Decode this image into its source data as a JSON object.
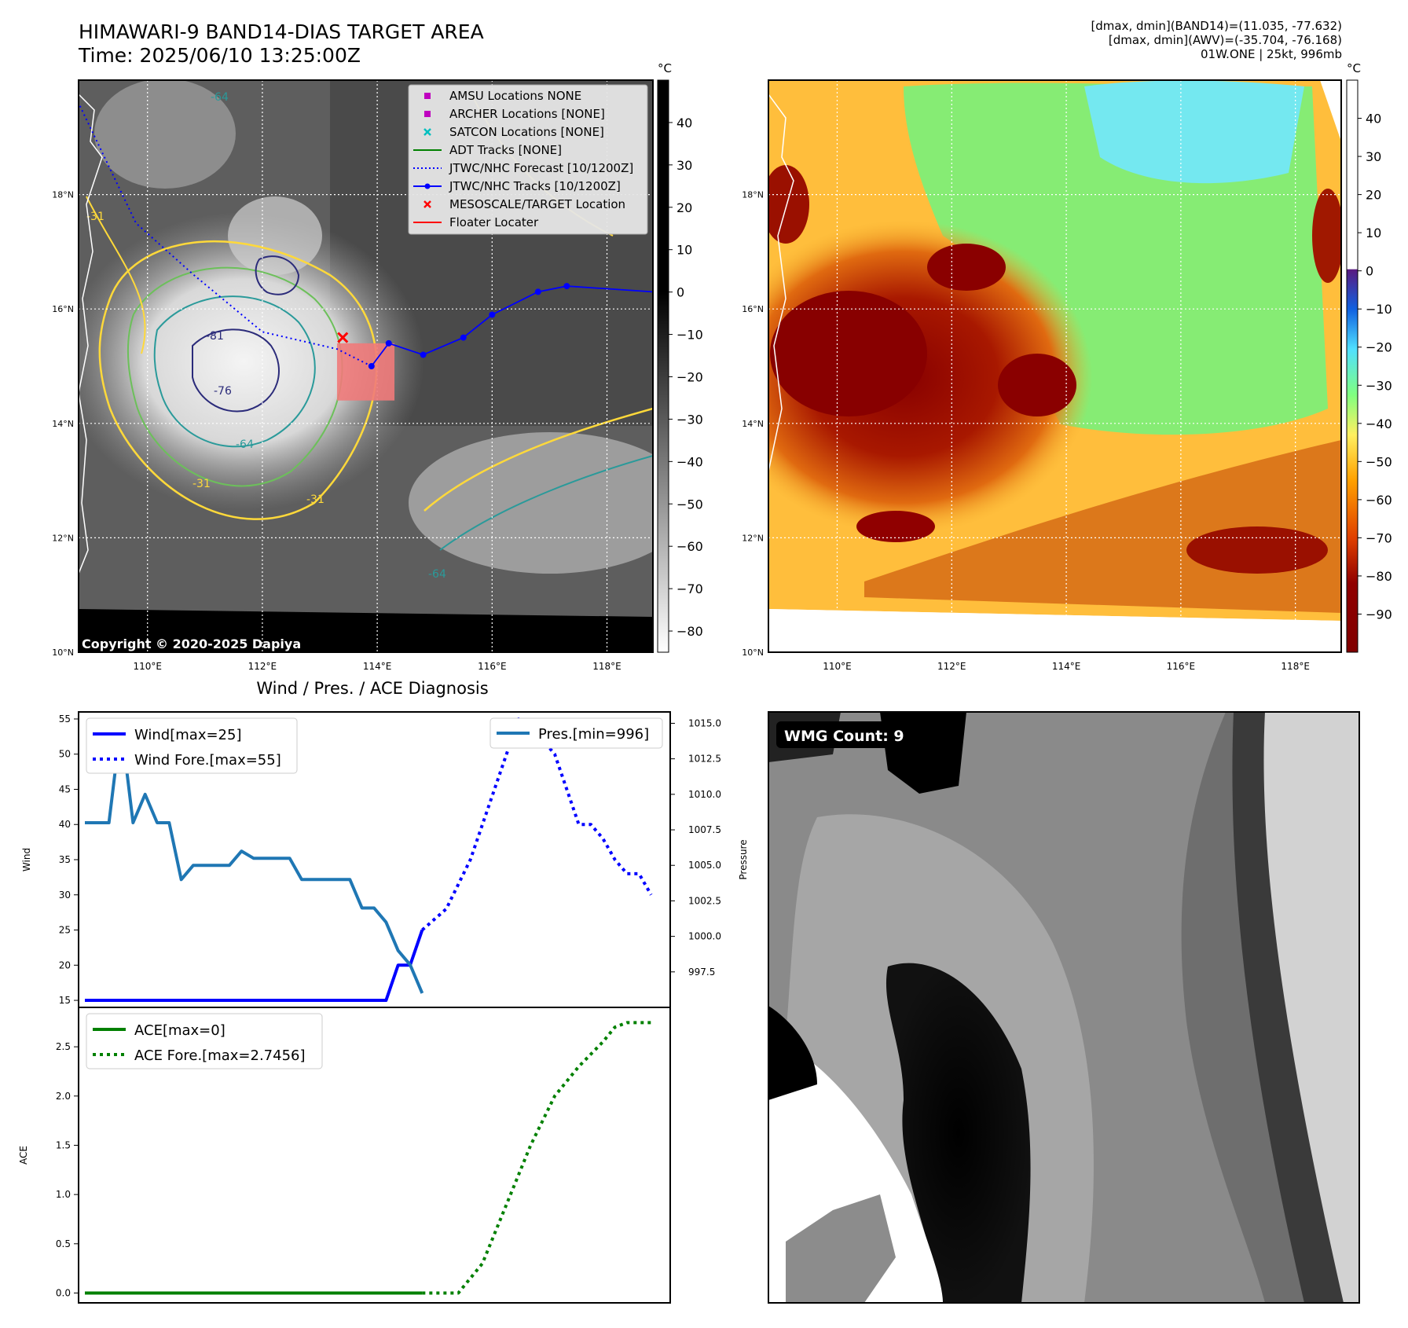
{
  "header": {
    "title": "HIMAWARI-9 BAND14-DIAS TARGET AREA",
    "time": "Time: 2025/06/10 13:25:00Z",
    "stats": [
      "[dmax, dmin](BAND14)=(11.035, -77.632)",
      "[dmax, dmin](AWV)=(-35.704, -76.168)",
      "01W.ONE | 25kt, 996mb"
    ]
  },
  "map_axes": {
    "lon_labels": [
      "110°E",
      "112°E",
      "114°E",
      "116°E",
      "118°E"
    ],
    "lat_labels": [
      "18°N",
      "16°N",
      "14°N",
      "12°N",
      "10°N"
    ],
    "lon_values": [
      110,
      112,
      114,
      116,
      118
    ],
    "lat_values": [
      18,
      16,
      14,
      12,
      10
    ],
    "lon_range": [
      108.8,
      118.8
    ],
    "lat_range": [
      10,
      20
    ]
  },
  "ir_panel": {
    "copyright": "Copyright © 2020-2025 Dapiya",
    "contour_labels": [
      "-64",
      "-81",
      "-76",
      "-31",
      "-64",
      "-31",
      "-64",
      "-31"
    ],
    "legend": [
      {
        "label": "AMSU Locations NONE",
        "marker": "square",
        "color": "#bf00bf"
      },
      {
        "label": "ARCHER Locations [NONE]",
        "marker": "square",
        "color": "#bf00bf"
      },
      {
        "label": "SATCON Locations [NONE]",
        "marker": "x",
        "color": "#00bfbf"
      },
      {
        "label": "ADT Tracks [NONE]",
        "marker": "line",
        "color": "#008000"
      },
      {
        "label": "JTWC/NHC Forecast [10/1200Z]",
        "marker": "dotted",
        "color": "#0000ff"
      },
      {
        "label": "JTWC/NHC Tracks [10/1200Z]",
        "marker": "line-dot",
        "color": "#0000ff"
      },
      {
        "label": "MESOSCALE/TARGET Location",
        "marker": "x",
        "color": "#ff0000"
      },
      {
        "label": "Floater Locater",
        "marker": "line",
        "color": "#ff0000"
      }
    ],
    "track": [
      [
        118.8,
        16.3
      ],
      [
        117.3,
        16.4
      ],
      [
        116.8,
        16.3
      ],
      [
        116.0,
        15.9
      ],
      [
        115.5,
        15.5
      ],
      [
        114.8,
        15.2
      ],
      [
        114.2,
        15.4
      ],
      [
        113.9,
        15.0
      ]
    ],
    "forecast": [
      [
        113.9,
        15.0
      ],
      [
        113.3,
        15.3
      ],
      [
        112.0,
        15.6
      ],
      [
        110.8,
        16.6
      ],
      [
        109.8,
        17.5
      ],
      [
        108.8,
        19.6
      ]
    ],
    "target": [
      113.4,
      15.5
    ],
    "floater_box": [
      113.3,
      14.4,
      114.3,
      15.4
    ],
    "colorbar": {
      "unit": "°C",
      "ticks": [
        "40",
        "30",
        "20",
        "10",
        "0",
        "−10",
        "−20",
        "−30",
        "−40",
        "−50",
        "−60",
        "−70",
        "−80"
      ],
      "range": [
        -85,
        50
      ]
    }
  },
  "awv_panel": {
    "colorbar": {
      "unit": "°C",
      "ticks": [
        "40",
        "30",
        "20",
        "10",
        "0",
        "−10",
        "−20",
        "−30",
        "−40",
        "−50",
        "−60",
        "−70",
        "−80",
        "−90"
      ],
      "range": [
        -100,
        50
      ]
    }
  },
  "wind_panel": {
    "title": "Wind / Pres. / ACE Diagnosis",
    "ylabel_left": "Wind",
    "ylabel_right": "Pressure",
    "ylabel_ace": "ACE",
    "legend_wind": [
      "Wind[max=25]",
      "Wind Fore.[max=55]"
    ],
    "legend_pres": [
      "Pres.[min=996]"
    ],
    "legend_ace": [
      "ACE[max=0]",
      "ACE Fore.[max=2.7456]"
    ],
    "wind_ticks": [
      "55",
      "50",
      "45",
      "40",
      "35",
      "30",
      "25",
      "20",
      "15"
    ],
    "pres_ticks": [
      "1015.0",
      "1012.5",
      "1010.0",
      "1007.5",
      "1005.0",
      "1002.5",
      "1000.0",
      "997.5"
    ],
    "ace_ticks": [
      "2.5",
      "2.0",
      "1.5",
      "1.0",
      "0.5",
      "0.0"
    ]
  },
  "chart_data": [
    {
      "type": "line",
      "title": "Wind / Pres. / ACE Diagnosis",
      "ylabel": "Wind",
      "ylim": [
        14,
        56
      ],
      "xlim": [
        0,
        48
      ],
      "series": [
        {
          "name": "Wind[max=25]",
          "color": "#0000ff",
          "style": "solid",
          "x": [
            0,
            25,
            26,
            27,
            28
          ],
          "y": [
            15,
            15,
            20,
            20,
            25
          ]
        },
        {
          "name": "Wind Fore.[max=55]",
          "color": "#0000ff",
          "style": "dotted",
          "x": [
            28,
            30,
            32,
            34,
            35,
            36,
            37,
            38,
            39,
            40,
            41,
            42,
            43,
            44,
            45,
            46,
            47
          ],
          "y": [
            25,
            28,
            35,
            45,
            50,
            55,
            52,
            52,
            50,
            45,
            40,
            40,
            38,
            35,
            33,
            33,
            30
          ]
        }
      ]
    },
    {
      "type": "line",
      "ylabel": "Pressure",
      "ylim": [
        995.0,
        1015.8
      ],
      "xlim": [
        0,
        48
      ],
      "series": [
        {
          "name": "Pres.[min=996]",
          "color": "#1f77b4",
          "style": "solid",
          "x": [
            0,
            1,
            2,
            3,
            4,
            5,
            6,
            7,
            8,
            9,
            10,
            11,
            12,
            13,
            14,
            15,
            16,
            17,
            18,
            19,
            20,
            21,
            22,
            23,
            24,
            25,
            26,
            27,
            28
          ],
          "y": [
            1008,
            1008,
            1008,
            1015,
            1008,
            1010,
            1008,
            1008,
            1004,
            1005,
            1005,
            1005,
            1005,
            1006,
            1005.5,
            1005.5,
            1005.5,
            1005.5,
            1004,
            1004,
            1004,
            1004,
            1004,
            1002,
            1002,
            1001,
            999,
            998,
            996
          ]
        }
      ]
    },
    {
      "type": "line",
      "ylabel": "ACE",
      "ylim": [
        -0.1,
        2.9
      ],
      "xlim": [
        0,
        48
      ],
      "series": [
        {
          "name": "ACE[max=0]",
          "color": "#008000",
          "style": "solid",
          "x": [
            0,
            28
          ],
          "y": [
            0,
            0
          ]
        },
        {
          "name": "ACE Fore.[max=2.7456]",
          "color": "#008000",
          "style": "dotted",
          "x": [
            28,
            31,
            33,
            35,
            37,
            39,
            41,
            43,
            44,
            45,
            46,
            47
          ],
          "y": [
            0,
            0,
            0.3,
            0.9,
            1.5,
            2.0,
            2.3,
            2.55,
            2.7,
            2.7456,
            2.7456,
            2.7456
          ]
        }
      ]
    }
  ],
  "wmg_panel": {
    "label": "WMG Count: 9"
  }
}
